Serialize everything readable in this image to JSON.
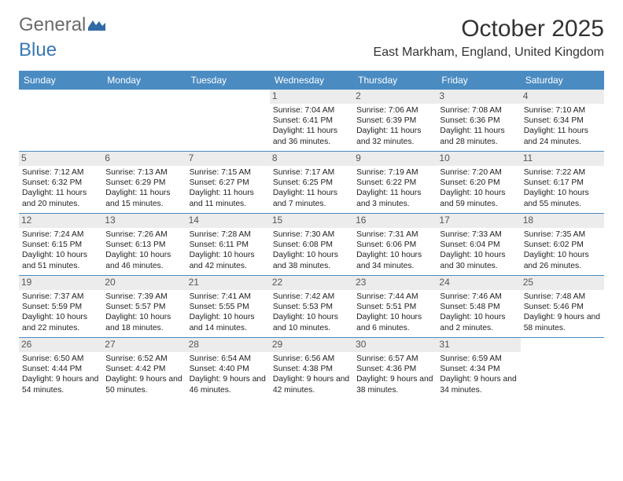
{
  "logo": {
    "word1": "General",
    "word2": "Blue"
  },
  "title": "October 2025",
  "location": "East Markham, England, United Kingdom",
  "header_bg": "#4a8bc2",
  "weekdays": [
    "Sunday",
    "Monday",
    "Tuesday",
    "Wednesday",
    "Thursday",
    "Friday",
    "Saturday"
  ],
  "weeks": [
    [
      null,
      null,
      null,
      {
        "n": "1",
        "sr": "7:04 AM",
        "ss": "6:41 PM",
        "dl": "11 hours and 36 minutes."
      },
      {
        "n": "2",
        "sr": "7:06 AM",
        "ss": "6:39 PM",
        "dl": "11 hours and 32 minutes."
      },
      {
        "n": "3",
        "sr": "7:08 AM",
        "ss": "6:36 PM",
        "dl": "11 hours and 28 minutes."
      },
      {
        "n": "4",
        "sr": "7:10 AM",
        "ss": "6:34 PM",
        "dl": "11 hours and 24 minutes."
      }
    ],
    [
      {
        "n": "5",
        "sr": "7:12 AM",
        "ss": "6:32 PM",
        "dl": "11 hours and 20 minutes."
      },
      {
        "n": "6",
        "sr": "7:13 AM",
        "ss": "6:29 PM",
        "dl": "11 hours and 15 minutes."
      },
      {
        "n": "7",
        "sr": "7:15 AM",
        "ss": "6:27 PM",
        "dl": "11 hours and 11 minutes."
      },
      {
        "n": "8",
        "sr": "7:17 AM",
        "ss": "6:25 PM",
        "dl": "11 hours and 7 minutes."
      },
      {
        "n": "9",
        "sr": "7:19 AM",
        "ss": "6:22 PM",
        "dl": "11 hours and 3 minutes."
      },
      {
        "n": "10",
        "sr": "7:20 AM",
        "ss": "6:20 PM",
        "dl": "10 hours and 59 minutes."
      },
      {
        "n": "11",
        "sr": "7:22 AM",
        "ss": "6:17 PM",
        "dl": "10 hours and 55 minutes."
      }
    ],
    [
      {
        "n": "12",
        "sr": "7:24 AM",
        "ss": "6:15 PM",
        "dl": "10 hours and 51 minutes."
      },
      {
        "n": "13",
        "sr": "7:26 AM",
        "ss": "6:13 PM",
        "dl": "10 hours and 46 minutes."
      },
      {
        "n": "14",
        "sr": "7:28 AM",
        "ss": "6:11 PM",
        "dl": "10 hours and 42 minutes."
      },
      {
        "n": "15",
        "sr": "7:30 AM",
        "ss": "6:08 PM",
        "dl": "10 hours and 38 minutes."
      },
      {
        "n": "16",
        "sr": "7:31 AM",
        "ss": "6:06 PM",
        "dl": "10 hours and 34 minutes."
      },
      {
        "n": "17",
        "sr": "7:33 AM",
        "ss": "6:04 PM",
        "dl": "10 hours and 30 minutes."
      },
      {
        "n": "18",
        "sr": "7:35 AM",
        "ss": "6:02 PM",
        "dl": "10 hours and 26 minutes."
      }
    ],
    [
      {
        "n": "19",
        "sr": "7:37 AM",
        "ss": "5:59 PM",
        "dl": "10 hours and 22 minutes."
      },
      {
        "n": "20",
        "sr": "7:39 AM",
        "ss": "5:57 PM",
        "dl": "10 hours and 18 minutes."
      },
      {
        "n": "21",
        "sr": "7:41 AM",
        "ss": "5:55 PM",
        "dl": "10 hours and 14 minutes."
      },
      {
        "n": "22",
        "sr": "7:42 AM",
        "ss": "5:53 PM",
        "dl": "10 hours and 10 minutes."
      },
      {
        "n": "23",
        "sr": "7:44 AM",
        "ss": "5:51 PM",
        "dl": "10 hours and 6 minutes."
      },
      {
        "n": "24",
        "sr": "7:46 AM",
        "ss": "5:48 PM",
        "dl": "10 hours and 2 minutes."
      },
      {
        "n": "25",
        "sr": "7:48 AM",
        "ss": "5:46 PM",
        "dl": "9 hours and 58 minutes."
      }
    ],
    [
      {
        "n": "26",
        "sr": "6:50 AM",
        "ss": "4:44 PM",
        "dl": "9 hours and 54 minutes."
      },
      {
        "n": "27",
        "sr": "6:52 AM",
        "ss": "4:42 PM",
        "dl": "9 hours and 50 minutes."
      },
      {
        "n": "28",
        "sr": "6:54 AM",
        "ss": "4:40 PM",
        "dl": "9 hours and 46 minutes."
      },
      {
        "n": "29",
        "sr": "6:56 AM",
        "ss": "4:38 PM",
        "dl": "9 hours and 42 minutes."
      },
      {
        "n": "30",
        "sr": "6:57 AM",
        "ss": "4:36 PM",
        "dl": "9 hours and 38 minutes."
      },
      {
        "n": "31",
        "sr": "6:59 AM",
        "ss": "4:34 PM",
        "dl": "9 hours and 34 minutes."
      },
      null
    ]
  ],
  "labels": {
    "sunrise": "Sunrise:",
    "sunset": "Sunset:",
    "daylight": "Daylight:"
  }
}
